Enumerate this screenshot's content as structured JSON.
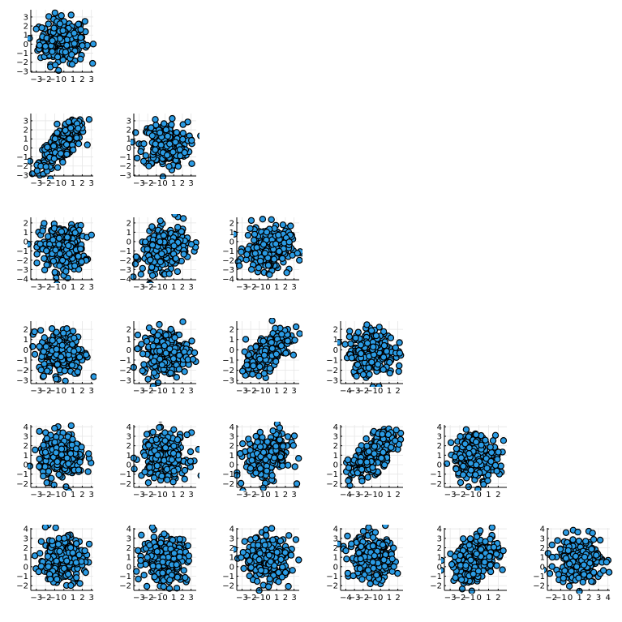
{
  "chart_data": {
    "type": "scatter",
    "layout": "lower-triangular scatter matrix, 6 rows",
    "grid": true,
    "legend": "none",
    "marker_color": "#2a9be4",
    "marker_edge_color": "#000000",
    "panels": [
      {
        "row": 0,
        "col": 0,
        "xlim": [
          -3.6,
          3.2
        ],
        "ylim": [
          -3.1,
          3.8
        ],
        "xticks": [
          -3,
          -2,
          -1,
          0,
          1,
          2,
          3
        ],
        "yticks": [
          -3,
          -2,
          -1,
          0,
          1,
          2,
          3
        ],
        "xtick_labels": [
          "−3",
          "−2",
          "−1",
          "0",
          "1",
          "2",
          "3"
        ],
        "ytick_labels": [
          "−3",
          "−2",
          "−1",
          "0",
          "1",
          "2",
          "3"
        ],
        "corr": 0.0
      },
      {
        "row": 1,
        "col": 0,
        "xlim": [
          -3.6,
          3.2
        ],
        "ylim": [
          -3.1,
          3.8
        ],
        "xticks": [
          -3,
          -2,
          -1,
          0,
          1,
          2,
          3
        ],
        "yticks": [
          -3,
          -2,
          -1,
          0,
          1,
          2,
          3
        ],
        "xtick_labels": [
          "−3",
          "−2",
          "−1",
          "0",
          "1",
          "2",
          "3"
        ],
        "ytick_labels": [
          "−3",
          "−2",
          "−1",
          "0",
          "1",
          "2",
          "3"
        ],
        "corr": 0.75
      },
      {
        "row": 1,
        "col": 1,
        "xlim": [
          -3.6,
          3.6
        ],
        "ylim": [
          -3.1,
          3.8
        ],
        "xticks": [
          -3,
          -2,
          -1,
          0,
          1,
          2,
          3
        ],
        "yticks": [
          -3,
          -2,
          -1,
          0,
          1,
          2,
          3
        ],
        "xtick_labels": [
          "−3",
          "−2",
          "−1",
          "0",
          "1",
          "2",
          "3"
        ],
        "ytick_labels": [
          "−3",
          "−2",
          "−1",
          "0",
          "1",
          "2",
          "3"
        ],
        "corr": 0.0
      },
      {
        "row": 2,
        "col": 0,
        "xlim": [
          -3.6,
          3.2
        ],
        "ylim": [
          -4.1,
          2.6
        ],
        "xticks": [
          -3,
          -2,
          -1,
          0,
          1,
          2,
          3
        ],
        "yticks": [
          -4,
          -3,
          -2,
          -1,
          0,
          1,
          2
        ],
        "xtick_labels": [
          "−3",
          "−2",
          "−1",
          "0",
          "1",
          "2",
          "3"
        ],
        "ytick_labels": [
          "−4",
          "−3",
          "−2",
          "−1",
          "0",
          "1",
          "2"
        ],
        "corr": 0.0
      },
      {
        "row": 2,
        "col": 1,
        "xlim": [
          -3.6,
          3.6
        ],
        "ylim": [
          -4.1,
          2.6
        ],
        "xticks": [
          -3,
          -2,
          -1,
          0,
          1,
          2,
          3
        ],
        "yticks": [
          -4,
          -3,
          -2,
          -1,
          0,
          1,
          2
        ],
        "xtick_labels": [
          "−3",
          "−2",
          "−1",
          "0",
          "1",
          "2",
          "3"
        ],
        "ytick_labels": [
          "−4",
          "−3",
          "−2",
          "−1",
          "0",
          "1",
          "2"
        ],
        "corr": 0.3
      },
      {
        "row": 2,
        "col": 2,
        "xlim": [
          -3.6,
          3.6
        ],
        "ylim": [
          -4.1,
          2.6
        ],
        "xticks": [
          -3,
          -2,
          -1,
          0,
          1,
          2,
          3
        ],
        "yticks": [
          -4,
          -3,
          -2,
          -1,
          0,
          1,
          2
        ],
        "xtick_labels": [
          "−3",
          "−2",
          "−1",
          "0",
          "1",
          "2",
          "3"
        ],
        "ytick_labels": [
          "−4",
          "−3",
          "−2",
          "−1",
          "0",
          "1",
          "2"
        ],
        "corr": 0.0
      },
      {
        "row": 3,
        "col": 0,
        "xlim": [
          -3.6,
          3.2
        ],
        "ylim": [
          -3.3,
          2.8
        ],
        "xticks": [
          -3,
          -2,
          -1,
          0,
          1,
          2,
          3
        ],
        "yticks": [
          -3,
          -2,
          -1,
          0,
          1,
          2
        ],
        "xtick_labels": [
          "−3",
          "−2",
          "−1",
          "0",
          "1",
          "2",
          "3"
        ],
        "ytick_labels": [
          "−3",
          "−2",
          "−1",
          "0",
          "1",
          "2"
        ],
        "corr": 0.0
      },
      {
        "row": 3,
        "col": 1,
        "xlim": [
          -3.6,
          3.6
        ],
        "ylim": [
          -3.3,
          2.8
        ],
        "xticks": [
          -3,
          -2,
          -1,
          0,
          1,
          2,
          3
        ],
        "yticks": [
          -3,
          -2,
          -1,
          0,
          1,
          2
        ],
        "xtick_labels": [
          "−3",
          "−2",
          "−1",
          "0",
          "1",
          "2",
          "3"
        ],
        "ytick_labels": [
          "−3",
          "−2",
          "−1",
          "0",
          "1",
          "2"
        ],
        "corr": 0.0
      },
      {
        "row": 3,
        "col": 2,
        "xlim": [
          -3.6,
          3.6
        ],
        "ylim": [
          -3.3,
          2.8
        ],
        "xticks": [
          -3,
          -2,
          -1,
          0,
          1,
          2,
          3
        ],
        "yticks": [
          -3,
          -2,
          -1,
          0,
          1,
          2
        ],
        "xtick_labels": [
          "−3",
          "−2",
          "−1",
          "0",
          "1",
          "2",
          "3"
        ],
        "ytick_labels": [
          "−3",
          "−2",
          "−1",
          "0",
          "1",
          "2"
        ],
        "corr": 0.7
      },
      {
        "row": 3,
        "col": 3,
        "xlim": [
          -4.6,
          2.6
        ],
        "ylim": [
          -3.3,
          2.8
        ],
        "xticks": [
          -4,
          -3,
          -2,
          -1,
          0,
          1,
          2
        ],
        "yticks": [
          -3,
          -2,
          -1,
          0,
          1,
          2
        ],
        "xtick_labels": [
          "−4",
          "−3",
          "−2",
          "−1",
          "0",
          "1",
          "2"
        ],
        "ytick_labels": [
          "−3",
          "−2",
          "−1",
          "0",
          "1",
          "2"
        ],
        "corr": 0.0
      },
      {
        "row": 4,
        "col": 0,
        "xlim": [
          -3.6,
          3.2
        ],
        "ylim": [
          -2.4,
          4.2
        ],
        "xticks": [
          -3,
          -2,
          -1,
          0,
          1,
          2,
          3
        ],
        "yticks": [
          -2,
          -1,
          0,
          1,
          2,
          3,
          4
        ],
        "xtick_labels": [
          "−3",
          "−2",
          "−1",
          "0",
          "1",
          "2",
          "3"
        ],
        "ytick_labels": [
          "−2",
          "−1",
          "0",
          "1",
          "2",
          "3",
          "4"
        ],
        "corr": 0.0
      },
      {
        "row": 4,
        "col": 1,
        "xlim": [
          -3.6,
          3.6
        ],
        "ylim": [
          -2.4,
          4.2
        ],
        "xticks": [
          -3,
          -2,
          -1,
          0,
          1,
          2,
          3
        ],
        "yticks": [
          -2,
          -1,
          0,
          1,
          2,
          3,
          4
        ],
        "xtick_labels": [
          "−3",
          "−2",
          "−1",
          "0",
          "1",
          "2",
          "3"
        ],
        "ytick_labels": [
          "−2",
          "−1",
          "0",
          "1",
          "2",
          "3",
          "4"
        ],
        "corr": 0.0
      },
      {
        "row": 4,
        "col": 2,
        "xlim": [
          -3.6,
          3.6
        ],
        "ylim": [
          -2.4,
          4.2
        ],
        "xticks": [
          -3,
          -2,
          -1,
          0,
          1,
          2,
          3
        ],
        "yticks": [
          -2,
          -1,
          0,
          1,
          2,
          3,
          4
        ],
        "xtick_labels": [
          "−3",
          "−2",
          "−1",
          "0",
          "1",
          "2",
          "3"
        ],
        "ytick_labels": [
          "−2",
          "−1",
          "0",
          "1",
          "2",
          "3",
          "4"
        ],
        "corr": 0.2
      },
      {
        "row": 4,
        "col": 3,
        "xlim": [
          -4.6,
          2.6
        ],
        "ylim": [
          -2.4,
          4.2
        ],
        "xticks": [
          -4,
          -3,
          -2,
          -1,
          0,
          1,
          2
        ],
        "yticks": [
          -2,
          -1,
          0,
          1,
          2,
          3,
          4
        ],
        "xtick_labels": [
          "−4",
          "−3",
          "−2",
          "−1",
          "0",
          "1",
          "2"
        ],
        "ytick_labels": [
          "−2",
          "−1",
          "0",
          "1",
          "2",
          "3",
          "4"
        ],
        "corr": 0.65
      },
      {
        "row": 4,
        "col": 4,
        "xlim": [
          -3.6,
          2.9
        ],
        "ylim": [
          -2.4,
          4.2
        ],
        "xticks": [
          -3,
          -2,
          -1,
          0,
          1,
          2
        ],
        "yticks": [
          -2,
          -1,
          0,
          1,
          2,
          3,
          4
        ],
        "xtick_labels": [
          "−3",
          "−2",
          "−1",
          "0",
          "1",
          "2"
        ],
        "ytick_labels": [
          "−2",
          "−1",
          "0",
          "1",
          "2",
          "3",
          "4"
        ],
        "corr": 0.0
      },
      {
        "row": 5,
        "col": 0,
        "xlim": [
          -3.6,
          3.2
        ],
        "ylim": [
          -2.5,
          4.1
        ],
        "xticks": [
          -3,
          -2,
          -1,
          0,
          1,
          2,
          3
        ],
        "yticks": [
          -2,
          -1,
          0,
          1,
          2,
          3,
          4
        ],
        "xtick_labels": [
          "−3",
          "−2",
          "−1",
          "0",
          "1",
          "2",
          "3"
        ],
        "ytick_labels": [
          "−2",
          "−1",
          "0",
          "1",
          "2",
          "3",
          "4"
        ],
        "corr": 0.0
      },
      {
        "row": 5,
        "col": 1,
        "xlim": [
          -3.6,
          3.6
        ],
        "ylim": [
          -2.5,
          4.1
        ],
        "xticks": [
          -3,
          -2,
          -1,
          0,
          1,
          2,
          3
        ],
        "yticks": [
          -2,
          -1,
          0,
          1,
          2,
          3,
          4
        ],
        "xtick_labels": [
          "−3",
          "−2",
          "−1",
          "0",
          "1",
          "2",
          "3"
        ],
        "ytick_labels": [
          "−2",
          "−1",
          "0",
          "1",
          "2",
          "3",
          "4"
        ],
        "corr": 0.0
      },
      {
        "row": 5,
        "col": 2,
        "xlim": [
          -3.6,
          3.6
        ],
        "ylim": [
          -2.5,
          4.1
        ],
        "xticks": [
          -3,
          -2,
          -1,
          0,
          1,
          2,
          3
        ],
        "yticks": [
          -2,
          -1,
          0,
          1,
          2,
          3,
          4
        ],
        "xtick_labels": [
          "−3",
          "−2",
          "−1",
          "0",
          "1",
          "2",
          "3"
        ],
        "ytick_labels": [
          "−2",
          "−1",
          "0",
          "1",
          "2",
          "3",
          "4"
        ],
        "corr": 0.0
      },
      {
        "row": 5,
        "col": 3,
        "xlim": [
          -4.6,
          2.6
        ],
        "ylim": [
          -2.5,
          4.1
        ],
        "xticks": [
          -4,
          -3,
          -2,
          -1,
          0,
          1,
          2
        ],
        "yticks": [
          -2,
          -1,
          0,
          1,
          2,
          3,
          4
        ],
        "xtick_labels": [
          "−4",
          "−3",
          "−2",
          "−1",
          "0",
          "1",
          "2"
        ],
        "ytick_labels": [
          "−2",
          "−1",
          "0",
          "1",
          "2",
          "3",
          "4"
        ],
        "corr": -0.2
      },
      {
        "row": 5,
        "col": 4,
        "xlim": [
          -3.6,
          2.9
        ],
        "ylim": [
          -2.5,
          4.1
        ],
        "xticks": [
          -3,
          -2,
          -1,
          0,
          1,
          2
        ],
        "yticks": [
          -2,
          -1,
          0,
          1,
          2,
          3,
          4
        ],
        "xtick_labels": [
          "−3",
          "−2",
          "−1",
          "0",
          "1",
          "2"
        ],
        "ytick_labels": [
          "−2",
          "−1",
          "0",
          "1",
          "2",
          "3",
          "4"
        ],
        "corr": 0.4
      },
      {
        "row": 5,
        "col": 5,
        "xlim": [
          -2.4,
          4.2
        ],
        "ylim": [
          -2.5,
          4.1
        ],
        "xticks": [
          -2,
          -1,
          0,
          1,
          2,
          3,
          4
        ],
        "yticks": [
          -2,
          -1,
          0,
          1,
          2,
          3,
          4
        ],
        "xtick_labels": [
          "−2",
          "−1",
          "0",
          "1",
          "2",
          "3",
          "4"
        ],
        "ytick_labels": [
          "−2",
          "−1",
          "0",
          "1",
          "2",
          "3",
          "4"
        ],
        "corr": 0.0
      }
    ]
  }
}
